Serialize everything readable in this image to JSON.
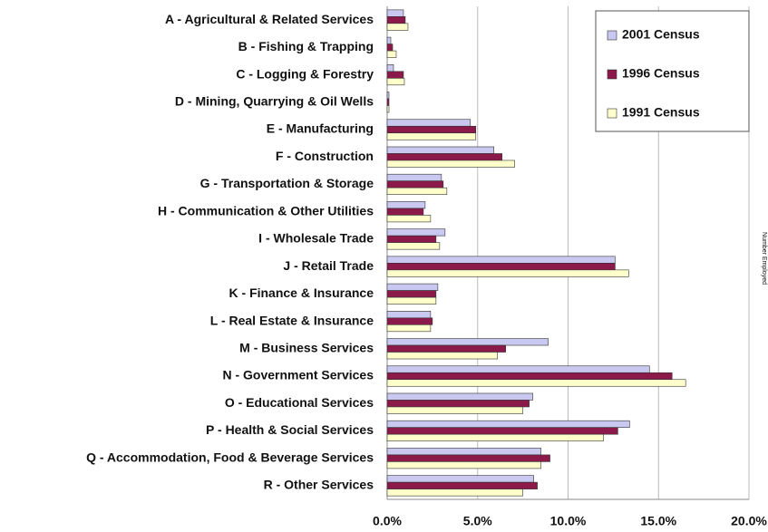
{
  "chart_data": {
    "type": "barh",
    "categories": [
      "A - Agricultural & Related Services",
      "B - Fishing & Trapping",
      "C - Logging & Forestry",
      "D - Mining, Quarrying & Oil Wells",
      "E - Manufacturing",
      "F - Construction",
      "G - Transportation & Storage",
      "H - Communication & Other Utilities",
      "I - Wholesale Trade",
      "J - Retail Trade",
      "K - Finance & Insurance",
      "L - Real Estate & Insurance",
      "M - Business Services",
      "N - Government Services",
      "O - Educational Services",
      "P - Health & Social Services",
      "Q - Accommodation, Food & Beverage Services",
      "R - Other Services"
    ],
    "series": [
      {
        "name": "2001 Census",
        "color": "#c8c8f0",
        "values": [
          0.9,
          0.2,
          0.35,
          0.1,
          4.6,
          5.9,
          3.0,
          2.1,
          3.2,
          12.6,
          2.8,
          2.4,
          8.9,
          14.5,
          8.05,
          13.4,
          8.5,
          8.1
        ]
      },
      {
        "name": "1996 Census",
        "color": "#8b1a4a",
        "values": [
          1.0,
          0.3,
          0.9,
          0.1,
          4.9,
          6.35,
          3.1,
          2.0,
          2.7,
          12.6,
          2.7,
          2.5,
          6.55,
          15.75,
          7.85,
          12.75,
          9.0,
          8.3
        ]
      },
      {
        "name": "1991 Census",
        "color": "#ffffcc",
        "values": [
          1.15,
          0.5,
          0.95,
          0.1,
          4.9,
          7.05,
          3.3,
          2.4,
          2.9,
          13.35,
          2.7,
          2.4,
          6.1,
          16.5,
          7.5,
          11.95,
          8.5,
          7.5
        ]
      }
    ],
    "xlim": [
      0,
      20
    ],
    "xticks": [
      {
        "value": 0,
        "label": "0.0%"
      },
      {
        "value": 5,
        "label": "5.0%"
      },
      {
        "value": 10,
        "label": "10.0%"
      },
      {
        "value": 15,
        "label": "15.0%"
      },
      {
        "value": 20,
        "label": "20.0%"
      }
    ],
    "grid": true,
    "legend": "top-right",
    "side_label": "Number Employed"
  }
}
